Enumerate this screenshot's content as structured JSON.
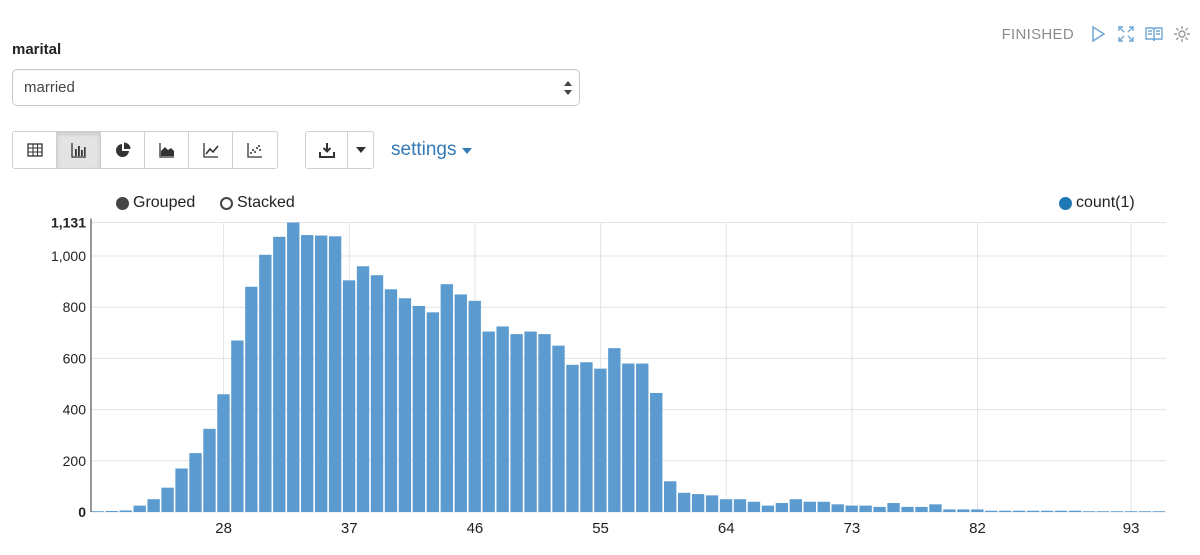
{
  "toolbar": {
    "status": "FINISHED",
    "icons": [
      "play-icon",
      "fullscreen-icon",
      "book-icon",
      "gear-icon"
    ]
  },
  "form": {
    "field_label": "marital",
    "select_value": "married"
  },
  "viz_buttons": [
    "table-icon",
    "bar-chart-icon",
    "pie-chart-icon",
    "area-chart-icon",
    "line-chart-icon",
    "scatter-chart-icon"
  ],
  "active_viz": "bar-chart-icon",
  "settings_label": "settings",
  "legend": {
    "grouped": "Grouped",
    "stacked": "Stacked",
    "series": "count(1)"
  },
  "colors": {
    "bar": "#5b9bd0",
    "series_dot": "#1f77b4",
    "link": "#337ab7"
  },
  "chart_data": {
    "type": "bar",
    "x": [
      19,
      20,
      21,
      22,
      23,
      24,
      25,
      26,
      27,
      28,
      29,
      30,
      31,
      32,
      33,
      34,
      35,
      36,
      37,
      38,
      39,
      40,
      41,
      42,
      43,
      44,
      45,
      46,
      47,
      48,
      49,
      50,
      51,
      52,
      53,
      54,
      55,
      56,
      57,
      58,
      59,
      60,
      61,
      62,
      63,
      64,
      65,
      66,
      67,
      68,
      69,
      70,
      71,
      72,
      73,
      74,
      75,
      76,
      77,
      78,
      79,
      80,
      81,
      82,
      83,
      84,
      85,
      86,
      87,
      88,
      89,
      90,
      91,
      92,
      93,
      94,
      95
    ],
    "tick_labels": [
      "28",
      "37",
      "46",
      "55",
      "64",
      "73",
      "82",
      "93"
    ],
    "series": [
      {
        "name": "count(1)",
        "values": [
          3,
          4,
          6,
          25,
          50,
          95,
          170,
          230,
          325,
          460,
          670,
          880,
          1005,
          1075,
          1131,
          1082,
          1080,
          1077,
          905,
          960,
          925,
          870,
          835,
          805,
          780,
          890,
          850,
          825,
          705,
          725,
          695,
          705,
          695,
          650,
          575,
          585,
          560,
          640,
          580,
          580,
          465,
          120,
          75,
          70,
          65,
          50,
          50,
          40,
          25,
          35,
          50,
          40,
          40,
          30,
          25,
          25,
          20,
          35,
          20,
          20,
          30,
          10,
          10,
          10,
          5,
          5,
          5,
          5,
          5,
          5,
          5,
          3,
          3,
          3,
          3,
          3,
          3
        ]
      }
    ],
    "y_ticks": [
      "0",
      "200",
      "400",
      "600",
      "800",
      "1,000",
      "1,131"
    ],
    "ylim": [
      0,
      1131
    ],
    "grid": true,
    "legend_position": "top-right"
  }
}
